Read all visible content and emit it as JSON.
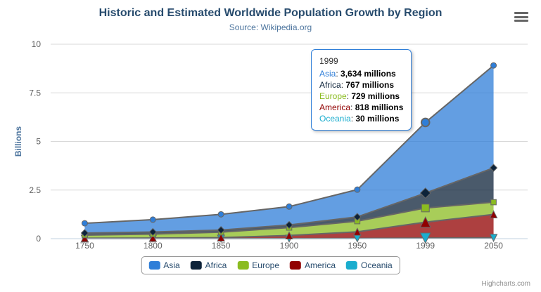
{
  "title": "Historic and Estimated Worldwide Population Growth by Region",
  "subtitle": "Source: Wikipedia.org",
  "credits": "Highcharts.com",
  "colors": {
    "title": "#274b6d",
    "subtitle": "#4d759e",
    "axis_labels": "#606060",
    "grid_line": "#d8d8d8",
    "axis_line": "#c0d0e0",
    "series_boundary_line": "#666666",
    "legend_text": "#274b6d",
    "tooltip_border": "#2f7ed8",
    "credits_text": "#909090"
  },
  "chart_data": {
    "type": "area",
    "stacking": "normal",
    "title": "Historic and Estimated Worldwide Population Growth by Region",
    "subtitle": "Source: Wikipedia.org",
    "categories": [
      "1750",
      "1800",
      "1850",
      "1900",
      "1950",
      "1999",
      "2050"
    ],
    "unit": "millions",
    "series": [
      {
        "name": "Asia",
        "color": "#2f7ed8",
        "marker": "circle",
        "values": [
          502,
          635,
          809,
          947,
          1402,
          3634,
          5268
        ]
      },
      {
        "name": "Africa",
        "color": "#0d233a",
        "marker": "diamond",
        "values": [
          106,
          107,
          111,
          133,
          221,
          767,
          1766
        ]
      },
      {
        "name": "Europe",
        "color": "#8bbc21",
        "marker": "square",
        "values": [
          163,
          203,
          276,
          408,
          547,
          729,
          628
        ]
      },
      {
        "name": "America",
        "color": "#910000",
        "marker": "triangle",
        "values": [
          18,
          31,
          54,
          156,
          339,
          818,
          1201
        ]
      },
      {
        "name": "Oceania",
        "color": "#1aadce",
        "marker": "triangle-down",
        "values": [
          2,
          2,
          2,
          6,
          13,
          30,
          46
        ]
      }
    ],
    "stack_order_bottom_to_top": [
      "Oceania",
      "America",
      "Europe",
      "Africa",
      "Asia"
    ],
    "xlabel": "",
    "ylabel": "Billions",
    "yticks": [
      0,
      2.5,
      5,
      7.5,
      10
    ],
    "ytick_labels": [
      "0",
      "2.5",
      "5",
      "7.5",
      "10"
    ],
    "ylim": [
      0,
      10
    ],
    "grid": true,
    "legend_position": "bottom",
    "hovered_category_index": 5
  },
  "tooltip": {
    "header": "1999",
    "border_color": "#2f7ed8",
    "rows": [
      {
        "name": "Asia",
        "color": "#2f7ed8",
        "value": "3,634 millions"
      },
      {
        "name": "Africa",
        "color": "#0d233a",
        "value": "767 millions"
      },
      {
        "name": "Europe",
        "color": "#8bbc21",
        "value": "729 millions"
      },
      {
        "name": "America",
        "color": "#910000",
        "value": "818 millions"
      },
      {
        "name": "Oceania",
        "color": "#1aadce",
        "value": "30 millions"
      }
    ]
  }
}
